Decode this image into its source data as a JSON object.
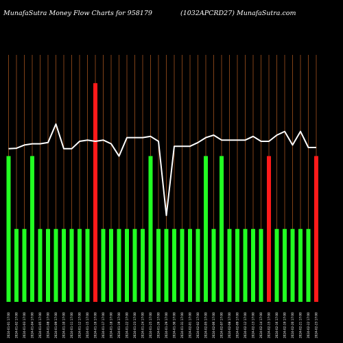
{
  "header": {
    "left_title": "MunafaSutra  Money Flow  Charts for 958179",
    "right_title": "(1032APCRD27) MunafaSutra.com"
  },
  "colors": {
    "background": "#000000",
    "gridline": "#a0521d",
    "bar_up": "#22ff22",
    "bar_down": "#ff1a1a",
    "line": "#ffffff"
  },
  "chart_data": {
    "type": "bar",
    "title": "",
    "xlabel": "",
    "ylabel": "",
    "grid": true,
    "note": "bars show money flow magnitude per day; white line is price trend",
    "categories": [
      "2024-01-01 17:00",
      "2024-01-02 17:00",
      "2024-01-03 17:00",
      "2024-01-04 17:00",
      "2024-01-05 17:00",
      "2024-01-08 17:00",
      "2024-01-09 17:00",
      "2024-01-10 17:00",
      "2024-01-11 17:00",
      "2024-01-12 17:00",
      "2024-01-15 17:00",
      "2024-01-16 17:00",
      "2024-01-17 17:00",
      "2024-01-18 17:00",
      "2024-01-19 17:00",
      "2024-01-22 17:00",
      "2024-01-23 17:00",
      "2024-01-24 17:00",
      "2024-01-25 17:00",
      "2024-01-26 17:00",
      "2024-01-29 17:00",
      "2024-01-30 17:00",
      "2024-01-31 17:00",
      "2024-02-01 17:00",
      "2024-02-02 17:00",
      "2024-02-05 17:00",
      "2024-02-06 17:00",
      "2024-02-07 17:00",
      "2024-02-08 17:00",
      "2024-02-09 17:00",
      "2024-02-12 17:00",
      "2024-02-13 17:00",
      "2024-02-14 17:00",
      "2024-02-15 17:00",
      "2024-02-16 17:00",
      "2024-02-19 17:00",
      "2024-02-20 17:00",
      "2024-02-21 17:00",
      "2024-02-22 17:00",
      "2024-02-23 17:00"
    ],
    "bar_values": [
      2,
      1,
      1,
      2,
      1,
      1,
      1,
      1,
      1,
      1,
      1,
      3,
      1,
      1,
      1,
      1,
      1,
      1,
      2,
      1,
      1,
      1,
      1,
      1,
      1,
      2,
      1,
      2,
      1,
      1,
      1,
      1,
      1,
      2,
      1,
      1,
      1,
      1,
      1,
      2
    ],
    "bar_colors": [
      "green",
      "green",
      "green",
      "green",
      "green",
      "green",
      "green",
      "green",
      "green",
      "green",
      "green",
      "red",
      "green",
      "green",
      "green",
      "green",
      "green",
      "green",
      "green",
      "green",
      "green",
      "green",
      "green",
      "green",
      "green",
      "green",
      "green",
      "green",
      "green",
      "green",
      "green",
      "green",
      "green",
      "red",
      "green",
      "green",
      "green",
      "green",
      "green",
      "red"
    ],
    "price_line": [
      62.0,
      62.2,
      63.5,
      64.0,
      64.0,
      64.5,
      72.0,
      62.0,
      62.0,
      65.0,
      65.5,
      65.0,
      65.5,
      64.0,
      59.0,
      66.5,
      66.5,
      66.5,
      67.0,
      65.0,
      35.0,
      63.0,
      63.0,
      63.0,
      64.5,
      66.5,
      67.5,
      65.5,
      65.5,
      65.5,
      65.5,
      67.0,
      65.0,
      65.0,
      67.5,
      69.0,
      63.5,
      69.0,
      62.5,
      62.5
    ],
    "ylim_bars": [
      0,
      3.2
    ],
    "ylim_line": [
      0,
      100
    ]
  }
}
